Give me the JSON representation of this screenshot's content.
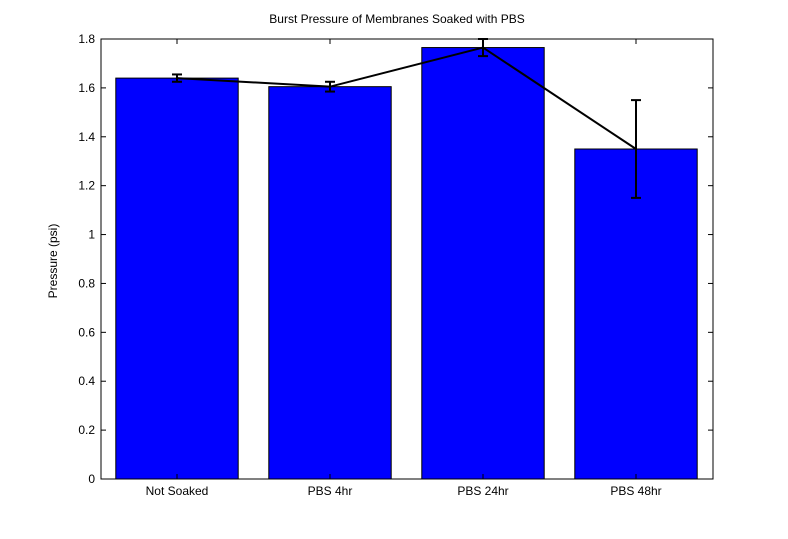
{
  "chart_data": {
    "type": "bar",
    "title": "Burst Pressure of Membranes Soaked with PBS",
    "xlabel": "",
    "ylabel": "Pressure (psi)",
    "categories": [
      "Not Soaked",
      "PBS 4hr",
      "PBS 24hr",
      "PBS 48hr"
    ],
    "values": [
      1.64,
      1.605,
      1.765,
      1.35
    ],
    "error": [
      0.015,
      0.02,
      0.035,
      0.2
    ],
    "ylim": [
      0,
      1.8
    ],
    "yticks": [
      "0",
      "0.2",
      "0.4",
      "0.6",
      "0.8",
      "1",
      "1.2",
      "1.4",
      "1.6",
      "1.8"
    ],
    "bar_color": "#0000ff",
    "line_color": "#000000",
    "grid": false
  }
}
